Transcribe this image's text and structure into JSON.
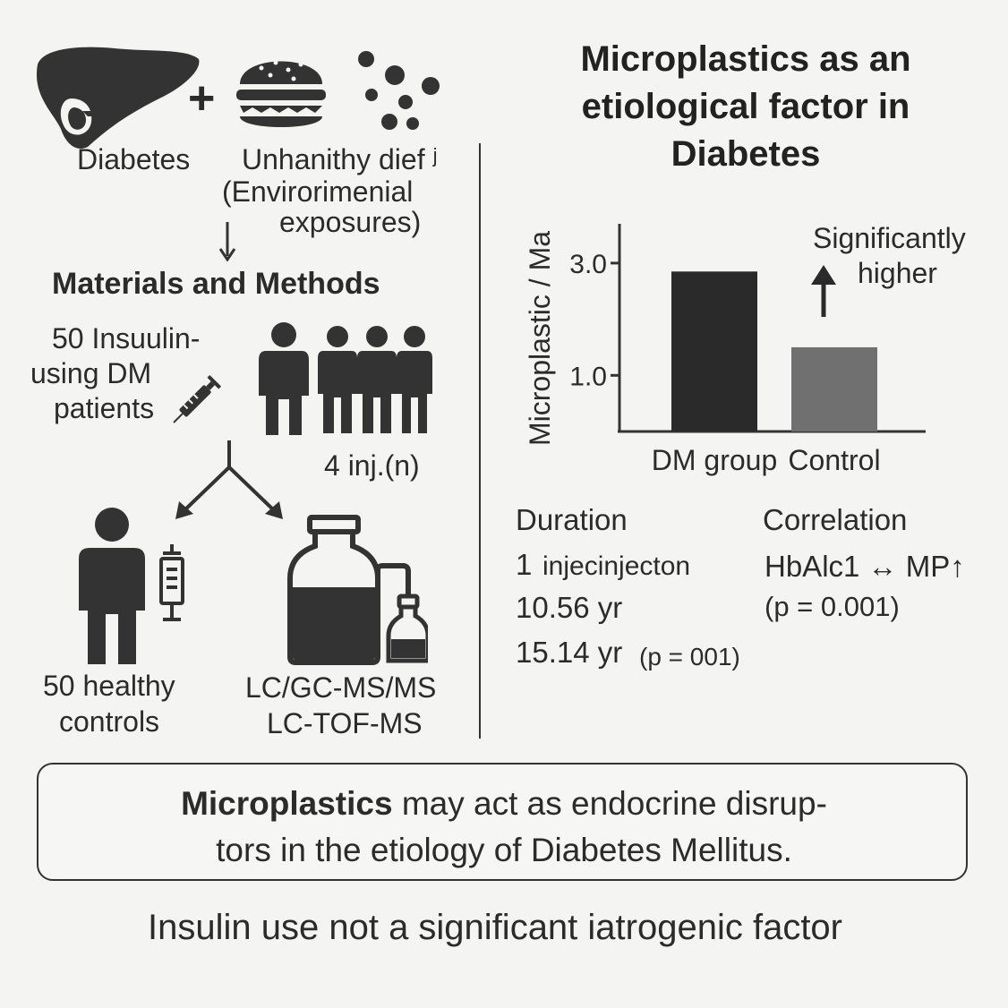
{
  "title": {
    "line1": "Microplastics as an",
    "line2": "etiological factor in",
    "line3": "Diabetes"
  },
  "top_row": {
    "diabetes_label": "Diabetes",
    "diet_line1": "Unhanithy dief ʲ",
    "diet_line2": "(Envirorimenial",
    "diet_line3": "exposures)",
    "plus": "+"
  },
  "methods": {
    "heading": "Materials and Methods",
    "patients_line1": "50 Insuulin-",
    "patients_line2": "using DM",
    "patients_line3": "patients",
    "inj_label": "4 inj.(n)",
    "controls_line1": "50 healthy",
    "controls_line2": "controls",
    "ms_line1": "LC/GC-MS/MS",
    "ms_line2": "LC-TOF-MS"
  },
  "chart_data": {
    "type": "bar",
    "ylabel": "Microplastic  / Ma",
    "categories": [
      "DM group",
      "Control"
    ],
    "values": [
      2.85,
      1.5
    ],
    "ylim": [
      0,
      3.7
    ],
    "yticks": [
      "3.0",
      "1.0"
    ],
    "ytick_values": [
      3.0,
      1.0
    ],
    "annotation": [
      "Significantly",
      "higher"
    ],
    "colors": [
      "#2a2a2a",
      "#707070"
    ]
  },
  "stats": {
    "duration_heading": "Duration",
    "duration_line1_num": "1",
    "duration_line1_text": "injecinjecton",
    "duration_line2": "10.56 yr",
    "duration_line3_main": "15.14 yr",
    "duration_line3_p": "(p = 001)",
    "correlation_heading": "Correlation",
    "correlation_line1": "HbAlc1 ↔ MP↑",
    "correlation_line2": "(p = 0.001)"
  },
  "summary": {
    "bold": "Microplastics",
    "line1_rest": " may act as endocrine disrup-",
    "line2": "tors in the etiology of Diabetes Mellitus."
  },
  "footer": "Insulin use not a significant iatrogenic factor"
}
